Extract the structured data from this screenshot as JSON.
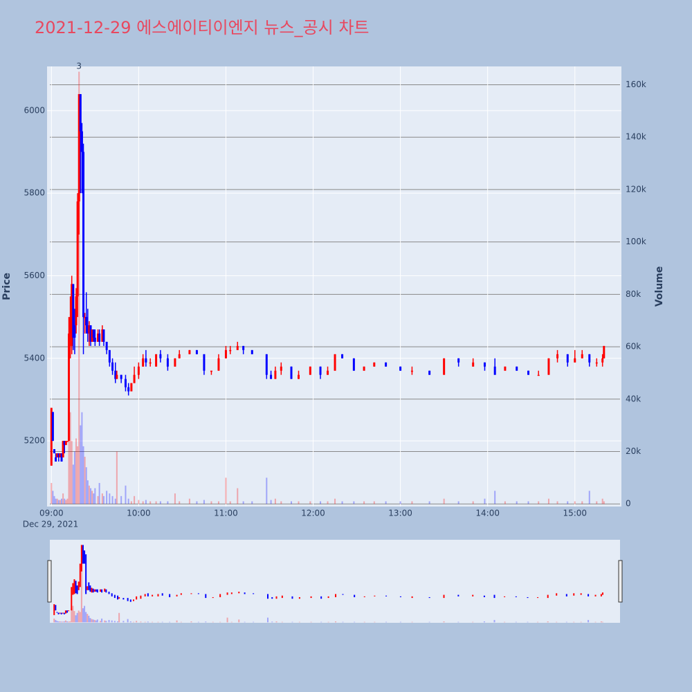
{
  "chart_data": {
    "type": "candlestick",
    "title": "2021-12-29 에스에이티이엔지 뉴스_공시 차트",
    "y_label": "Price",
    "y2_label": "Volume",
    "date_label": "Dec 29, 2021",
    "annotation": {
      "x": "2021-12-29 09:19",
      "text": "3"
    },
    "increasing_color": "#ff0000",
    "decreasing_color": "#0000ff",
    "xlim": [
      "2021-12-29 08:57",
      "2021-12-29 15:32"
    ],
    "xticks": [
      {
        "value": "2021-12-29 09:00",
        "label": "09:00"
      },
      {
        "value": "2021-12-29 10:00",
        "label": "10:00"
      },
      {
        "value": "2021-12-29 11:00",
        "label": "11:00"
      },
      {
        "value": "2021-12-29 12:00",
        "label": "12:00"
      },
      {
        "value": "2021-12-29 13:00",
        "label": "13:00"
      },
      {
        "value": "2021-12-29 14:00",
        "label": "14:00"
      },
      {
        "value": "2021-12-29 15:00",
        "label": "15:00"
      }
    ],
    "ylim": [
      5041,
      6107
    ],
    "yticks": [
      5200,
      5400,
      5600,
      5800,
      6000
    ],
    "y2lim": [
      -1000,
      167000
    ],
    "y2ticks": [
      0,
      {
        "value": 20000,
        "label": "20k"
      },
      {
        "value": 40000,
        "label": "40k"
      },
      {
        "value": 60000,
        "label": "60k"
      },
      {
        "value": 80000,
        "label": "80k"
      },
      {
        "value": 100000,
        "label": "100k"
      },
      {
        "value": 120000,
        "label": "120k"
      },
      {
        "value": 140000,
        "label": "140k"
      },
      {
        "value": 160000,
        "label": "160k"
      }
    ],
    "x": [
      "2021-12-29 09:00",
      "2021-12-29 09:01",
      "2021-12-29 09:02",
      "2021-12-29 09:03",
      "2021-12-29 09:04",
      "2021-12-29 09:05",
      "2021-12-29 09:06",
      "2021-12-29 09:07",
      "2021-12-29 09:08",
      "2021-12-29 09:09",
      "2021-12-29 09:10",
      "2021-12-29 09:11",
      "2021-12-29 09:12",
      "2021-12-29 09:13",
      "2021-12-29 09:14",
      "2021-12-29 09:15",
      "2021-12-29 09:16",
      "2021-12-29 09:17",
      "2021-12-29 09:18",
      "2021-12-29 09:19",
      "2021-12-29 09:20",
      "2021-12-29 09:21",
      "2021-12-29 09:22",
      "2021-12-29 09:23",
      "2021-12-29 09:24",
      "2021-12-29 09:25",
      "2021-12-29 09:26",
      "2021-12-29 09:27",
      "2021-12-29 09:28",
      "2021-12-29 09:29",
      "2021-12-29 09:30",
      "2021-12-29 09:32",
      "2021-12-29 09:33",
      "2021-12-29 09:35",
      "2021-12-29 09:36",
      "2021-12-29 09:38",
      "2021-12-29 09:40",
      "2021-12-29 09:42",
      "2021-12-29 09:44",
      "2021-12-29 09:45",
      "2021-12-29 09:48",
      "2021-12-29 09:51",
      "2021-12-29 09:53",
      "2021-12-29 09:55",
      "2021-12-29 09:57",
      "2021-12-29 10:00",
      "2021-12-29 10:03",
      "2021-12-29 10:05",
      "2021-12-29 10:08",
      "2021-12-29 10:12",
      "2021-12-29 10:15",
      "2021-12-29 10:20",
      "2021-12-29 10:25",
      "2021-12-29 10:28",
      "2021-12-29 10:35",
      "2021-12-29 10:40",
      "2021-12-29 10:45",
      "2021-12-29 10:50",
      "2021-12-29 10:55",
      "2021-12-29 11:00",
      "2021-12-29 11:03",
      "2021-12-29 11:08",
      "2021-12-29 11:12",
      "2021-12-29 11:18",
      "2021-12-29 11:28",
      "2021-12-29 11:31",
      "2021-12-29 11:34",
      "2021-12-29 11:38",
      "2021-12-29 11:45",
      "2021-12-29 11:50",
      "2021-12-29 11:58",
      "2021-12-29 12:05",
      "2021-12-29 12:10",
      "2021-12-29 12:15",
      "2021-12-29 12:20",
      "2021-12-29 12:28",
      "2021-12-29 12:35",
      "2021-12-29 12:42",
      "2021-12-29 12:50",
      "2021-12-29 13:00",
      "2021-12-29 13:08",
      "2021-12-29 13:20",
      "2021-12-29 13:30",
      "2021-12-29 13:40",
      "2021-12-29 13:50",
      "2021-12-29 13:58",
      "2021-12-29 14:05",
      "2021-12-29 14:12",
      "2021-12-29 14:20",
      "2021-12-29 14:28",
      "2021-12-29 14:35",
      "2021-12-29 14:42",
      "2021-12-29 14:48",
      "2021-12-29 14:55",
      "2021-12-29 15:00",
      "2021-12-29 15:05",
      "2021-12-29 15:10",
      "2021-12-29 15:15",
      "2021-12-29 15:19",
      "2021-12-29 15:20"
    ],
    "open": [
      5140,
      5270,
      5180,
      5160,
      5160,
      5170,
      5160,
      5170,
      5160,
      5200,
      5190,
      5200,
      5200,
      5460,
      5430,
      5580,
      5480,
      5480,
      5550,
      5780,
      6040,
      5950,
      5900,
      5500,
      5500,
      5480,
      5460,
      5480,
      5440,
      5470,
      5450,
      5440,
      5460,
      5440,
      5470,
      5440,
      5420,
      5390,
      5370,
      5350,
      5360,
      5350,
      5330,
      5320,
      5340,
      5360,
      5380,
      5400,
      5390,
      5380,
      5410,
      5400,
      5380,
      5400,
      5410,
      5420,
      5410,
      5370,
      5370,
      5400,
      5420,
      5420,
      5430,
      5420,
      5410,
      5360,
      5350,
      5370,
      5380,
      5350,
      5360,
      5380,
      5360,
      5370,
      5410,
      5400,
      5370,
      5380,
      5390,
      5380,
      5370,
      5370,
      5360,
      5400,
      5380,
      5390,
      5380,
      5370,
      5380,
      5370,
      5360,
      5360,
      5400,
      5410,
      5390,
      5400,
      5410,
      5390,
      5390,
      5400
    ],
    "high": [
      5280,
      5270,
      5180,
      5170,
      5170,
      5170,
      5170,
      5170,
      5200,
      5200,
      5200,
      5200,
      5500,
      5550,
      5600,
      5580,
      5520,
      5570,
      5800,
      6040,
      6040,
      5970,
      5920,
      5510,
      5560,
      5520,
      5490,
      5480,
      5470,
      5470,
      5470,
      5470,
      5470,
      5480,
      5470,
      5440,
      5420,
      5400,
      5390,
      5370,
      5360,
      5360,
      5340,
      5340,
      5380,
      5390,
      5410,
      5420,
      5400,
      5410,
      5420,
      5410,
      5400,
      5420,
      5420,
      5420,
      5410,
      5370,
      5410,
      5430,
      5430,
      5440,
      5430,
      5420,
      5410,
      5370,
      5380,
      5390,
      5380,
      5370,
      5380,
      5380,
      5380,
      5410,
      5410,
      5400,
      5380,
      5390,
      5390,
      5380,
      5380,
      5370,
      5400,
      5400,
      5400,
      5390,
      5400,
      5380,
      5380,
      5370,
      5370,
      5400,
      5420,
      5410,
      5420,
      5420,
      5410,
      5400,
      5410,
      5430
    ],
    "low": [
      5140,
      5200,
      5170,
      5150,
      5160,
      5150,
      5160,
      5150,
      5160,
      5170,
      5190,
      5200,
      5200,
      5400,
      5410,
      5420,
      5410,
      5460,
      5500,
      5700,
      5800,
      5800,
      5410,
      5460,
      5460,
      5440,
      5430,
      5430,
      5440,
      5440,
      5430,
      5440,
      5430,
      5440,
      5430,
      5410,
      5380,
      5360,
      5340,
      5350,
      5340,
      5320,
      5310,
      5320,
      5340,
      5350,
      5380,
      5380,
      5380,
      5380,
      5390,
      5370,
      5380,
      5400,
      5410,
      5410,
      5360,
      5360,
      5370,
      5400,
      5410,
      5420,
      5410,
      5410,
      5350,
      5350,
      5350,
      5360,
      5350,
      5350,
      5360,
      5350,
      5360,
      5370,
      5400,
      5370,
      5370,
      5380,
      5380,
      5370,
      5360,
      5360,
      5360,
      5380,
      5380,
      5370,
      5360,
      5370,
      5370,
      5360,
      5360,
      5360,
      5390,
      5380,
      5390,
      5400,
      5380,
      5380,
      5380,
      5400
    ],
    "close": [
      5280,
      5200,
      5170,
      5150,
      5170,
      5160,
      5170,
      5150,
      5200,
      5190,
      5200,
      5200,
      5460,
      5500,
      5580,
      5450,
      5450,
      5550,
      5780,
      6040,
      5950,
      5900,
      5500,
      5500,
      5480,
      5460,
      5480,
      5440,
      5470,
      5450,
      5440,
      5460,
      5440,
      5470,
      5440,
      5420,
      5390,
      5370,
      5350,
      5360,
      5350,
      5330,
      5320,
      5340,
      5360,
      5380,
      5400,
      5390,
      5390,
      5410,
      5400,
      5380,
      5400,
      5410,
      5420,
      5410,
      5370,
      5370,
      5400,
      5420,
      5420,
      5430,
      5420,
      5410,
      5360,
      5350,
      5370,
      5380,
      5350,
      5360,
      5380,
      5360,
      5370,
      5410,
      5400,
      5370,
      5380,
      5390,
      5380,
      5370,
      5370,
      5360,
      5400,
      5390,
      5390,
      5380,
      5360,
      5380,
      5370,
      5360,
      5360,
      5400,
      5410,
      5390,
      5400,
      5410,
      5390,
      5390,
      5400,
      5430
    ],
    "volume": [
      8000,
      5000,
      3000,
      2000,
      2000,
      1500,
      1500,
      2000,
      4000,
      2000,
      1500,
      2000,
      30000,
      35000,
      24000,
      15000,
      20000,
      25000,
      22000,
      165000,
      30000,
      35000,
      22000,
      18000,
      14000,
      9000,
      7000,
      6000,
      5000,
      4000,
      6000,
      3000,
      8000,
      4000,
      3000,
      5000,
      4000,
      3000,
      2000,
      20000,
      3000,
      7000,
      2000,
      1000,
      3000,
      1500,
      1000,
      1500,
      1000,
      1000,
      1000,
      1000,
      4000,
      1000,
      2000,
      1000,
      1500,
      1000,
      1000,
      10000,
      1000,
      6000,
      1000,
      1000,
      10000,
      1500,
      2000,
      1000,
      1000,
      1000,
      1000,
      1000,
      1000,
      2000,
      1000,
      1000,
      1000,
      1000,
      1000,
      1000,
      1000,
      1000,
      2000,
      1000,
      1000,
      2000,
      5000,
      1000,
      1000,
      1000,
      1000,
      2000,
      1000,
      1000,
      1000,
      1000,
      5000,
      1000,
      2000,
      1000
    ]
  }
}
